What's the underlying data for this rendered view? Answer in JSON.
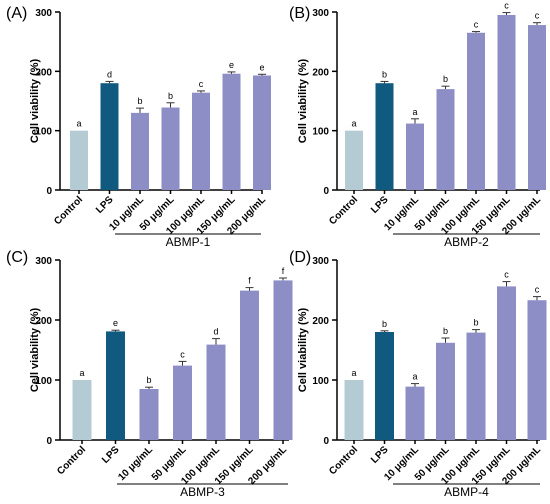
{
  "colors": {
    "control": "#b5cbd3",
    "lps": "#105a80",
    "sample": "#8e8ec6",
    "axis": "#000000"
  },
  "chart_data": [
    {
      "type": "bar",
      "panel_label": "(A)",
      "group_label": "ABMP-1",
      "ylabel": "Cell viability (%)",
      "ylim": [
        0,
        300
      ],
      "yticks": [
        0,
        100,
        200,
        300
      ],
      "categories": [
        "Control",
        "LPS",
        "10 μg/mL",
        "50 μg/mL",
        "100 μg/mL",
        "150 μg/mL",
        "200 μg/mL"
      ],
      "values": [
        100,
        180,
        130,
        139,
        164,
        196,
        193
      ],
      "errors": [
        0,
        3,
        8,
        8,
        3,
        3,
        2
      ],
      "letters": [
        "a",
        "d",
        "b",
        "b",
        "c",
        "e",
        "e"
      ]
    },
    {
      "type": "bar",
      "panel_label": "(B)",
      "group_label": "ABMP-2",
      "ylabel": "Cell viability (%)",
      "ylim": [
        0,
        300
      ],
      "yticks": [
        0,
        100,
        200,
        300
      ],
      "categories": [
        "Control",
        "LPS",
        "10 μg/mL",
        "50 μg/mL",
        "100 μg/mL",
        "150 μg/mL",
        "200 μg/mL"
      ],
      "values": [
        100,
        180,
        112,
        170,
        265,
        295,
        278
      ],
      "errors": [
        0,
        3,
        8,
        5,
        2,
        4,
        4
      ],
      "letters": [
        "a",
        "b",
        "a",
        "b",
        "c",
        "c",
        "c"
      ]
    },
    {
      "type": "bar",
      "panel_label": "(C)",
      "group_label": "ABMP-3",
      "ylabel": "Cell viability (%)",
      "ylim": [
        0,
        300
      ],
      "yticks": [
        0,
        100,
        200,
        300
      ],
      "categories": [
        "Control",
        "LPS",
        "10 μg/mL",
        "50 μg/mL",
        "100 μg/mL",
        "150 μg/mL",
        "200 μg/mL"
      ],
      "values": [
        100,
        181,
        85,
        124,
        159,
        249,
        266
      ],
      "errors": [
        0,
        2,
        3,
        7,
        10,
        5,
        4
      ],
      "letters": [
        "a",
        "e",
        "b",
        "c",
        "d",
        "f",
        "f"
      ]
    },
    {
      "type": "bar",
      "panel_label": "(D)",
      "group_label": "ABMP-4",
      "ylabel": "Cell viability (%)",
      "ylim": [
        0,
        300
      ],
      "yticks": [
        0,
        100,
        200,
        300
      ],
      "categories": [
        "Control",
        "LPS",
        "10 μg/mL",
        "50 μg/mL",
        "100 μg/mL",
        "150 μg/mL",
        "200 μg/mL"
      ],
      "values": [
        100,
        180,
        89,
        162,
        179,
        256,
        233
      ],
      "errors": [
        0,
        2,
        5,
        8,
        5,
        8,
        6
      ],
      "letters": [
        "a",
        "b",
        "a",
        "b",
        "b",
        "c",
        "c"
      ]
    }
  ]
}
